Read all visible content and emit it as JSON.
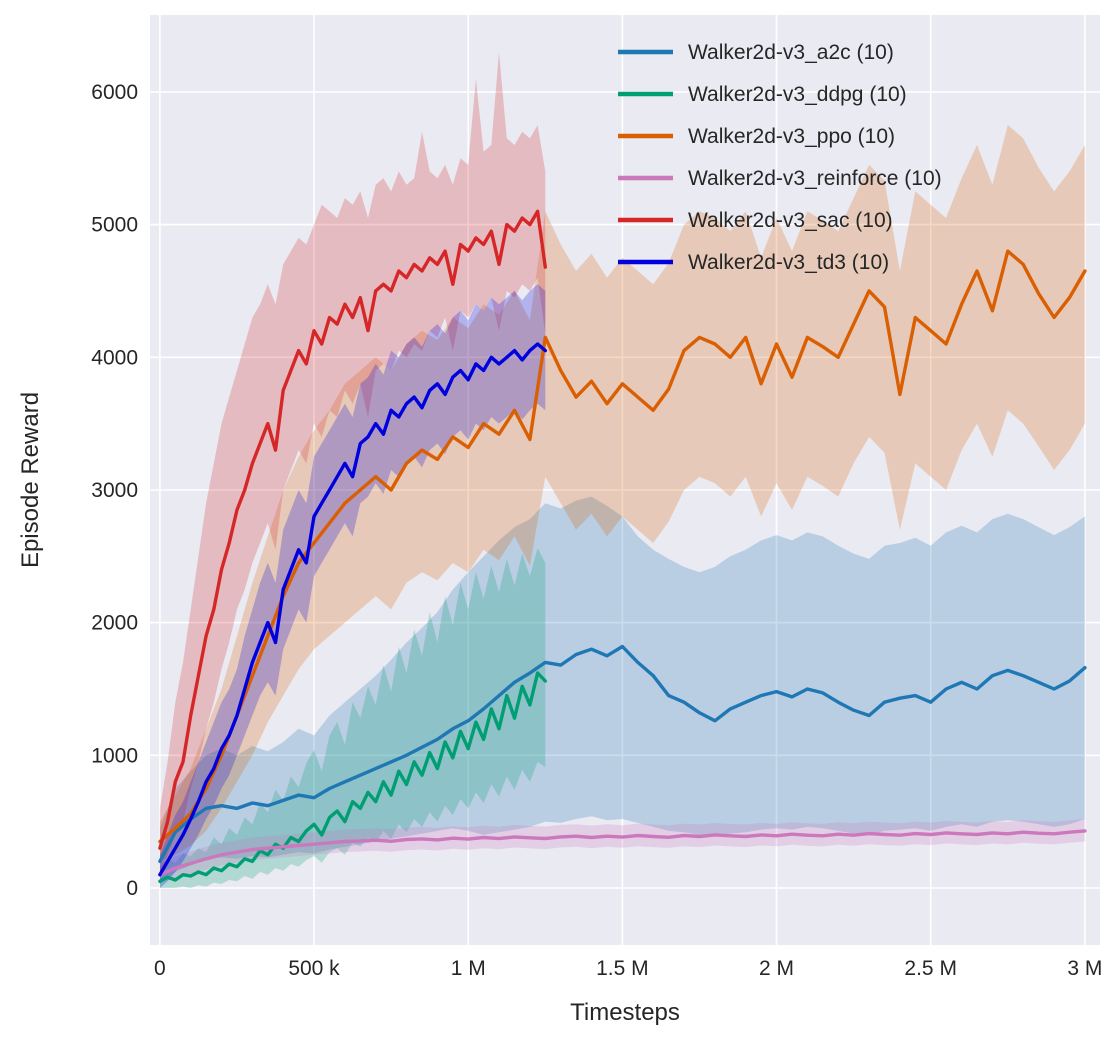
{
  "figure": {
    "background": "#ffffff"
  },
  "chart_data": {
    "type": "line",
    "title": "",
    "xlabel": "Timesteps",
    "ylabel": "Episode Reward",
    "x_unit_note": "x values are in thousands of timesteps",
    "xlim": [
      -32,
      3049
    ],
    "ylim": [
      -430,
      6580
    ],
    "plot_bg": "#eaeaf2",
    "grid_color": "#ffffff",
    "text_color": "#262626",
    "band_opacity": 0.24,
    "grid": true,
    "legend_position": "upper right",
    "x_ticks": [
      {
        "v": 0,
        "label": "0"
      },
      {
        "v": 500,
        "label": "500 k"
      },
      {
        "v": 1000,
        "label": "1 M"
      },
      {
        "v": 1500,
        "label": "1.5 M"
      },
      {
        "v": 2000,
        "label": "2 M"
      },
      {
        "v": 2500,
        "label": "2.5 M"
      },
      {
        "v": 3000,
        "label": "3 M"
      }
    ],
    "y_ticks": [
      {
        "v": 0,
        "label": "0"
      },
      {
        "v": 1000,
        "label": "1000"
      },
      {
        "v": 2000,
        "label": "2000"
      },
      {
        "v": 3000,
        "label": "3000"
      },
      {
        "v": 4000,
        "label": "4000"
      },
      {
        "v": 5000,
        "label": "5000"
      },
      {
        "v": 6000,
        "label": "6000"
      }
    ],
    "x_grids": {
      "short": [
        0,
        25,
        50,
        75,
        100,
        125,
        150,
        175,
        200,
        225,
        250,
        275,
        300,
        325,
        350,
        375,
        400,
        425,
        450,
        475,
        500,
        525,
        550,
        575,
        600,
        625,
        650,
        675,
        700,
        725,
        750,
        775,
        800,
        825,
        850,
        875,
        900,
        925,
        950,
        975,
        1000,
        1025,
        1050,
        1075,
        1100,
        1125,
        1150,
        1175,
        1200,
        1225,
        1250
      ],
      "long": [
        0,
        50,
        100,
        150,
        200,
        250,
        300,
        350,
        400,
        450,
        500,
        550,
        600,
        650,
        700,
        750,
        800,
        850,
        900,
        950,
        1000,
        1050,
        1100,
        1150,
        1200,
        1250,
        1300,
        1350,
        1400,
        1450,
        1500,
        1550,
        1600,
        1650,
        1700,
        1750,
        1800,
        1850,
        1900,
        1950,
        2000,
        2050,
        2100,
        2150,
        2200,
        2250,
        2300,
        2350,
        2400,
        2450,
        2500,
        2550,
        2600,
        2650,
        2700,
        2750,
        2800,
        2850,
        2900,
        2950,
        3000
      ]
    },
    "series": [
      {
        "id": "a2c",
        "name": "Walker2d-v3_a2c (10)",
        "color": "#1f77b4",
        "x_grid": "long",
        "y": [
          200,
          420,
          520,
          600,
          620,
          600,
          640,
          620,
          660,
          700,
          680,
          750,
          800,
          850,
          900,
          950,
          1000,
          1060,
          1120,
          1200,
          1260,
          1350,
          1450,
          1550,
          1620,
          1700,
          1680,
          1760,
          1800,
          1750,
          1820,
          1700,
          1600,
          1450,
          1400,
          1320,
          1260,
          1350,
          1400,
          1450,
          1480,
          1440,
          1500,
          1470,
          1400,
          1340,
          1300,
          1400,
          1430,
          1450,
          1400,
          1500,
          1550,
          1500,
          1600,
          1640,
          1600,
          1550,
          1500,
          1560,
          1660
        ],
        "lo": [
          30,
          120,
          170,
          220,
          230,
          220,
          240,
          230,
          250,
          270,
          260,
          290,
          310,
          330,
          350,
          370,
          390,
          410,
          430,
          450,
          430,
          400,
          420,
          440,
          460,
          500,
          490,
          520,
          540,
          510,
          520,
          490,
          460,
          430,
          420,
          400,
          390,
          410,
          420,
          440,
          450,
          440,
          460,
          450,
          430,
          410,
          400,
          430,
          440,
          450,
          430,
          460,
          480,
          460,
          500,
          510,
          500,
          480,
          460,
          480,
          520
        ],
        "hi": [
          450,
          750,
          880,
          1000,
          1050,
          1000,
          1070,
          1030,
          1100,
          1200,
          1150,
          1300,
          1400,
          1500,
          1600,
          1720,
          1850,
          1960,
          2080,
          2250,
          2380,
          2500,
          2620,
          2720,
          2780,
          2900,
          2860,
          2920,
          2950,
          2880,
          2800,
          2650,
          2550,
          2480,
          2420,
          2380,
          2420,
          2500,
          2550,
          2620,
          2660,
          2620,
          2680,
          2650,
          2580,
          2520,
          2480,
          2580,
          2600,
          2640,
          2580,
          2680,
          2730,
          2680,
          2780,
          2820,
          2780,
          2720,
          2660,
          2720,
          2800
        ]
      },
      {
        "id": "ddpg",
        "name": "Walker2d-v3_ddpg (10)",
        "color": "#029e73",
        "x_grid": "short",
        "y": [
          50,
          80,
          60,
          100,
          90,
          120,
          100,
          150,
          130,
          180,
          160,
          220,
          200,
          280,
          250,
          330,
          300,
          380,
          350,
          430,
          480,
          400,
          530,
          580,
          500,
          650,
          600,
          720,
          650,
          800,
          700,
          880,
          780,
          950,
          850,
          1020,
          900,
          1100,
          980,
          1180,
          1050,
          1250,
          1120,
          1350,
          1200,
          1450,
          1280,
          1520,
          1380,
          1620,
          1560
        ],
        "lo": [
          0,
          0,
          0,
          10,
          0,
          20,
          10,
          40,
          30,
          60,
          50,
          90,
          70,
          120,
          100,
          150,
          130,
          180,
          160,
          210,
          240,
          190,
          270,
          300,
          250,
          340,
          310,
          380,
          340,
          430,
          370,
          480,
          420,
          520,
          460,
          570,
          500,
          620,
          550,
          670,
          600,
          720,
          640,
          780,
          690,
          840,
          740,
          890,
          800,
          950,
          910
        ],
        "hi": [
          160,
          220,
          190,
          260,
          240,
          300,
          270,
          380,
          330,
          450,
          400,
          530,
          480,
          640,
          570,
          740,
          660,
          840,
          760,
          940,
          1040,
          880,
          1150,
          1250,
          1080,
          1400,
          1280,
          1520,
          1380,
          1680,
          1480,
          1820,
          1620,
          1950,
          1750,
          2080,
          1850,
          2200,
          1980,
          2300,
          2100,
          2380,
          2180,
          2430,
          2230,
          2480,
          2280,
          2520,
          2350,
          2560,
          2450
        ]
      },
      {
        "id": "ppo",
        "name": "Walker2d-v3_ppo (10)",
        "color": "#d95f02",
        "x_grid": "long",
        "y": [
          350,
          450,
          560,
          750,
          1000,
          1300,
          1600,
          1900,
          2200,
          2450,
          2600,
          2750,
          2900,
          3000,
          3100,
          3000,
          3200,
          3300,
          3230,
          3400,
          3320,
          3500,
          3420,
          3600,
          3380,
          4150,
          3900,
          3700,
          3820,
          3650,
          3800,
          3700,
          3600,
          3760,
          4050,
          4150,
          4100,
          4000,
          4150,
          3800,
          4100,
          3850,
          4150,
          4080,
          4000,
          4250,
          4500,
          4380,
          3720,
          4300,
          4200,
          4100,
          4400,
          4650,
          4350,
          4800,
          4700,
          4480,
          4300,
          4450,
          4650
        ],
        "lo": [
          200,
          250,
          320,
          430,
          600,
          800,
          1000,
          1250,
          1450,
          1650,
          1800,
          1900,
          2000,
          2100,
          2200,
          2100,
          2300,
          2380,
          2320,
          2450,
          2380,
          2550,
          2470,
          2650,
          2430,
          3100,
          2900,
          2700,
          2820,
          2650,
          2800,
          2700,
          2600,
          2760,
          3000,
          3100,
          3050,
          2950,
          3100,
          2800,
          3050,
          2850,
          3100,
          3030,
          2950,
          3200,
          3400,
          3280,
          2700,
          3200,
          3100,
          3000,
          3300,
          3500,
          3250,
          3600,
          3500,
          3330,
          3150,
          3300,
          3500
        ],
        "hi": [
          500,
          700,
          900,
          1200,
          1500,
          1900,
          2300,
          2650,
          3000,
          3250,
          3450,
          3600,
          3800,
          3900,
          4000,
          3900,
          4100,
          4200,
          4130,
          4300,
          4220,
          4400,
          4320,
          4500,
          4280,
          5100,
          4850,
          4650,
          4780,
          4600,
          4750,
          4650,
          4550,
          4710,
          5000,
          5100,
          5050,
          4950,
          5100,
          4750,
          5050,
          4800,
          5100,
          5030,
          4950,
          5200,
          5450,
          5330,
          4650,
          5250,
          5150,
          5050,
          5350,
          5600,
          5300,
          5750,
          5650,
          5430,
          5250,
          5400,
          5600
        ]
      },
      {
        "id": "reinforce",
        "name": "Walker2d-v3_reinforce (10)",
        "color": "#cc78bc",
        "x_grid": "long",
        "y": [
          100,
          150,
          185,
          220,
          250,
          270,
          290,
          300,
          310,
          320,
          330,
          340,
          350,
          355,
          360,
          352,
          365,
          370,
          362,
          375,
          368,
          380,
          372,
          385,
          378,
          373,
          385,
          390,
          380,
          390,
          383,
          395,
          388,
          382,
          395,
          388,
          400,
          393,
          388,
          400,
          393,
          405,
          398,
          393,
          405,
          398,
          410,
          403,
          398,
          410,
          403,
          415,
          408,
          403,
          415,
          408,
          420,
          413,
          408,
          420,
          430
        ],
        "lo": [
          40,
          75,
          105,
          140,
          170,
          190,
          210,
          220,
          230,
          240,
          250,
          260,
          270,
          275,
          280,
          272,
          285,
          290,
          282,
          295,
          288,
          300,
          292,
          305,
          298,
          293,
          305,
          310,
          300,
          310,
          303,
          315,
          308,
          302,
          315,
          308,
          320,
          313,
          308,
          320,
          313,
          325,
          318,
          313,
          325,
          318,
          330,
          323,
          318,
          330,
          323,
          335,
          328,
          323,
          335,
          328,
          340,
          333,
          328,
          340,
          350
        ],
        "hi": [
          190,
          240,
          275,
          310,
          340,
          360,
          380,
          390,
          400,
          410,
          420,
          430,
          440,
          445,
          450,
          442,
          455,
          460,
          452,
          465,
          458,
          470,
          462,
          475,
          468,
          463,
          475,
          480,
          470,
          480,
          473,
          485,
          478,
          472,
          485,
          478,
          490,
          483,
          478,
          490,
          483,
          495,
          488,
          483,
          495,
          488,
          500,
          493,
          488,
          500,
          493,
          505,
          498,
          493,
          505,
          498,
          510,
          503,
          498,
          510,
          520
        ]
      },
      {
        "id": "sac",
        "name": "Walker2d-v3_sac (10)",
        "color": "#d62728",
        "x_grid": "short",
        "y": [
          300,
          500,
          800,
          950,
          1300,
          1600,
          1900,
          2100,
          2400,
          2600,
          2850,
          3000,
          3200,
          3350,
          3500,
          3300,
          3750,
          3900,
          4050,
          3950,
          4200,
          4100,
          4300,
          4250,
          4400,
          4300,
          4450,
          4200,
          4500,
          4550,
          4500,
          4650,
          4600,
          4700,
          4650,
          4750,
          4700,
          4800,
          4550,
          4850,
          4800,
          4900,
          4850,
          4950,
          4700,
          5000,
          4950,
          5050,
          5000,
          5100,
          4680
        ],
        "lo": [
          100,
          250,
          400,
          500,
          750,
          950,
          1200,
          1400,
          1650,
          1850,
          2100,
          2250,
          2450,
          2600,
          2750,
          2550,
          3000,
          3150,
          3300,
          3200,
          3500,
          3400,
          3600,
          3550,
          3750,
          3650,
          3800,
          3550,
          3900,
          3950,
          3900,
          4050,
          4000,
          4100,
          4050,
          4200,
          4150,
          4300,
          4050,
          4350,
          4300,
          4400,
          4350,
          4450,
          4200,
          4500,
          4450,
          4550,
          4500,
          4600,
          4180
        ],
        "hi": [
          600,
          950,
          1400,
          1700,
          2100,
          2500,
          2900,
          3200,
          3500,
          3700,
          3900,
          4100,
          4300,
          4400,
          4550,
          4400,
          4700,
          4800,
          4900,
          4850,
          5000,
          5150,
          5100,
          5050,
          5200,
          5150,
          5250,
          5050,
          5300,
          5350,
          5250,
          5400,
          5300,
          5350,
          5700,
          5400,
          5350,
          5450,
          5300,
          5500,
          5450,
          6100,
          5550,
          5600,
          6300,
          5650,
          5600,
          5700,
          5650,
          5750,
          5400
        ]
      },
      {
        "id": "td3",
        "name": "Walker2d-v3_td3 (10)",
        "color": "#0000dd",
        "x_grid": "short",
        "y": [
          100,
          200,
          300,
          400,
          520,
          650,
          800,
          900,
          1050,
          1150,
          1300,
          1500,
          1700,
          1850,
          2000,
          1850,
          2250,
          2400,
          2550,
          2450,
          2800,
          2900,
          3000,
          3100,
          3200,
          3100,
          3350,
          3400,
          3500,
          3420,
          3600,
          3550,
          3650,
          3700,
          3620,
          3750,
          3800,
          3720,
          3850,
          3900,
          3830,
          3950,
          3900,
          4000,
          3950,
          4000,
          4050,
          3980,
          4050,
          4100,
          4050
        ],
        "lo": [
          0,
          50,
          120,
          200,
          300,
          400,
          520,
          620,
          750,
          850,
          1000,
          1150,
          1300,
          1450,
          1550,
          1450,
          1800,
          1950,
          2100,
          2000,
          2350,
          2450,
          2550,
          2650,
          2750,
          2650,
          2900,
          2950,
          3050,
          2970,
          3150,
          3100,
          3200,
          3250,
          3170,
          3300,
          3350,
          3270,
          3400,
          3450,
          3380,
          3500,
          3450,
          3550,
          3500,
          3550,
          3600,
          3530,
          3600,
          3650,
          3600
        ],
        "hi": [
          250,
          400,
          550,
          650,
          800,
          950,
          1100,
          1250,
          1400,
          1500,
          1650,
          1900,
          2100,
          2300,
          2450,
          2300,
          2700,
          2850,
          3000,
          2900,
          3250,
          3350,
          3450,
          3550,
          3650,
          3550,
          3800,
          3850,
          3950,
          3870,
          4050,
          4000,
          4100,
          4150,
          4080,
          4200,
          4250,
          4180,
          4300,
          4350,
          4280,
          4400,
          4350,
          4450,
          4400,
          4450,
          4500,
          4430,
          4500,
          4550,
          4500
        ]
      }
    ]
  }
}
